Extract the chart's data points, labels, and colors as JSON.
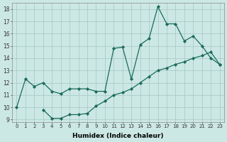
{
  "xlabel": "Humidex (Indice chaleur)",
  "background_color": "#cce8e4",
  "grid_color": "#aaccc8",
  "line_color": "#1a6b5a",
  "xlim": [
    -0.5,
    23.5
  ],
  "ylim": [
    8.8,
    18.5
  ],
  "xticks": [
    0,
    1,
    2,
    3,
    4,
    5,
    6,
    7,
    8,
    9,
    10,
    11,
    12,
    13,
    14,
    15,
    16,
    17,
    18,
    19,
    20,
    21,
    22,
    23
  ],
  "yticks": [
    9,
    10,
    11,
    12,
    13,
    14,
    15,
    16,
    17,
    18
  ],
  "line1_x": [
    0,
    1,
    2,
    3,
    4,
    5,
    6,
    7,
    8,
    9,
    10,
    11,
    12,
    13,
    14,
    15,
    16,
    17,
    18,
    19,
    20,
    21,
    22,
    23
  ],
  "line1_y": [
    10.0,
    12.3,
    11.7,
    12.0,
    11.3,
    11.1,
    11.5,
    11.5,
    11.5,
    11.3,
    11.3,
    14.8,
    14.9,
    12.3,
    15.1,
    15.6,
    18.2,
    16.8,
    16.8,
    15.4,
    15.8,
    15.0,
    14.0,
    13.5
  ],
  "line2_x": [
    3,
    4,
    5,
    6,
    7,
    8,
    9,
    10,
    11,
    12,
    13,
    14,
    15,
    16,
    17,
    18,
    19,
    20,
    21,
    22,
    23
  ],
  "line2_y": [
    9.8,
    9.1,
    9.1,
    9.4,
    9.4,
    9.5,
    10.1,
    10.5,
    11.0,
    11.2,
    11.5,
    12.0,
    12.5,
    13.0,
    13.2,
    13.5,
    13.7,
    14.0,
    14.2,
    14.5,
    13.5
  ]
}
